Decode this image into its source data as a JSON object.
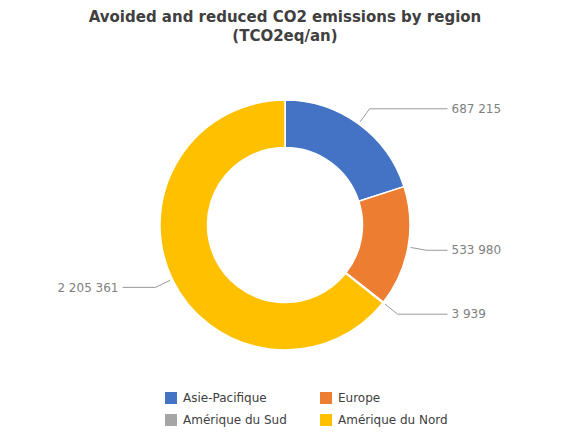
{
  "chart_data": {
    "type": "donut",
    "title": "Avoided and reduced CO2 emissions by region\n(TCO2eq/an)",
    "categories": [
      "Asie-Pacifique",
      "Europe",
      "Amérique du Sud",
      "Amérique du Nord"
    ],
    "values": [
      687215,
      533980,
      3939,
      2205361
    ],
    "value_labels": [
      "687 215",
      "533 980",
      "3 939",
      "2 205 361"
    ],
    "colors": [
      "#4472C4",
      "#ED7D31",
      "#A5A5A5",
      "#FFC000"
    ],
    "data_labels": true,
    "legend": "bottom"
  }
}
